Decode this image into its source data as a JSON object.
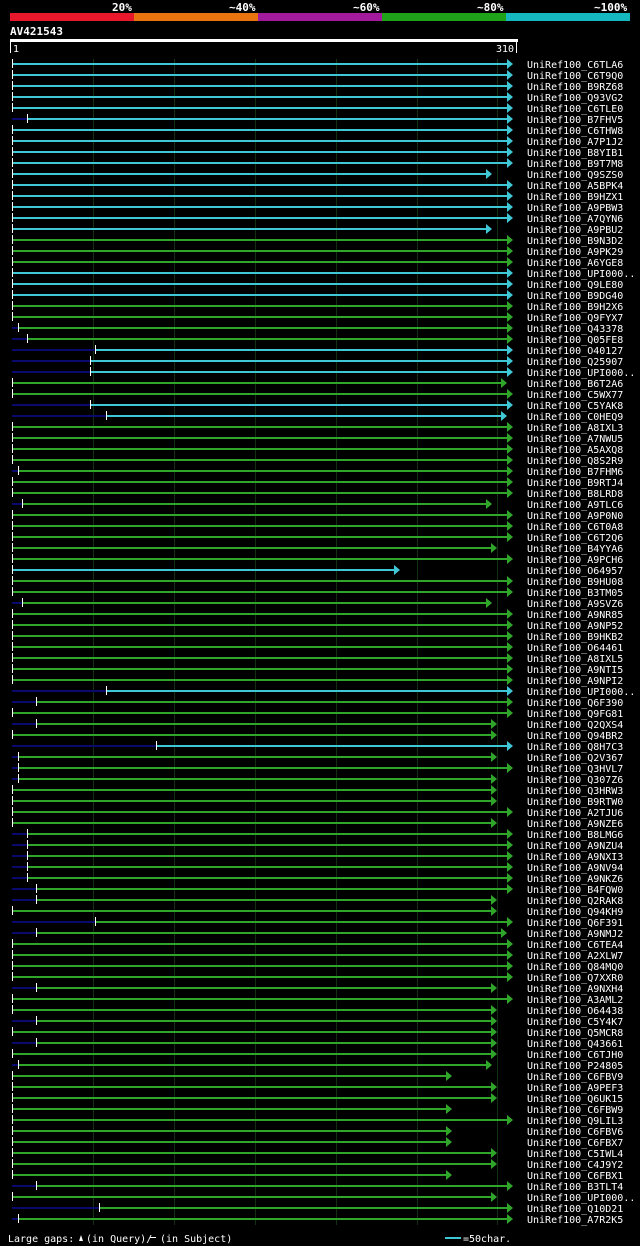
{
  "legend": {
    "percent_labels": [
      "20%",
      "~40%",
      "~60%",
      "~80%",
      "~100%"
    ],
    "colors": [
      "#e8172b",
      "#e8730f",
      "#a31a9c",
      "#1fa31b",
      "#16b8c0"
    ]
  },
  "query": {
    "name": "AV421543",
    "start_label": "1",
    "end_label": "310",
    "length": 310
  },
  "colors": {
    "cyan": "#3fc7d6",
    "green": "#2fa62a",
    "navy": "#0a0a6e",
    "grid": "#103010",
    "label": "#ffffff"
  },
  "hits": [
    {
      "name": "UniRef100_C6TLA6",
      "c": "cyan",
      "s": 1,
      "e": 310
    },
    {
      "name": "UniRef100_C6T9Q0",
      "c": "cyan",
      "s": 1,
      "e": 310
    },
    {
      "name": "UniRef100_B9RZ68",
      "c": "cyan",
      "s": 1,
      "e": 310
    },
    {
      "name": "UniRef100_Q93VG2",
      "c": "cyan",
      "s": 1,
      "e": 310
    },
    {
      "name": "UniRef100_C6TLE0",
      "c": "cyan",
      "s": 1,
      "e": 310
    },
    {
      "name": "UniRef100_B7FHV5",
      "c": "cyan",
      "s": 10,
      "e": 310
    },
    {
      "name": "UniRef100_C6THW8",
      "c": "cyan",
      "s": 1,
      "e": 310
    },
    {
      "name": "UniRef100_A7P1J2",
      "c": "cyan",
      "s": 1,
      "e": 310
    },
    {
      "name": "UniRef100_B8YIB1",
      "c": "cyan",
      "s": 1,
      "e": 310
    },
    {
      "name": "UniRef100_B9T7M8",
      "c": "cyan",
      "s": 1,
      "e": 310
    },
    {
      "name": "UniRef100_Q9SZS0",
      "c": "cyan",
      "s": 1,
      "e": 297
    },
    {
      "name": "UniRef100_A5BPK4",
      "c": "cyan",
      "s": 1,
      "e": 310
    },
    {
      "name": "UniRef100_B9HZX1",
      "c": "cyan",
      "s": 1,
      "e": 310
    },
    {
      "name": "UniRef100_A9PBW3",
      "c": "cyan",
      "s": 1,
      "e": 310
    },
    {
      "name": "UniRef100_A7QYN6",
      "c": "cyan",
      "s": 1,
      "e": 310
    },
    {
      "name": "UniRef100_A9PBU2",
      "c": "cyan",
      "s": 1,
      "e": 297
    },
    {
      "name": "UniRef100_B9N3D2",
      "c": "green",
      "s": 1,
      "e": 310
    },
    {
      "name": "UniRef100_A9PK29",
      "c": "green",
      "s": 1,
      "e": 310
    },
    {
      "name": "UniRef100_A6YGE8",
      "c": "green",
      "s": 1,
      "e": 310
    },
    {
      "name": "UniRef100_UPI000..",
      "c": "cyan",
      "s": 1,
      "e": 310
    },
    {
      "name": "UniRef100_Q9LE80",
      "c": "cyan",
      "s": 1,
      "e": 310
    },
    {
      "name": "UniRef100_B9DG40",
      "c": "cyan",
      "s": 1,
      "e": 310
    },
    {
      "name": "UniRef100_B9H2X6",
      "c": "green",
      "s": 1,
      "e": 310
    },
    {
      "name": "UniRef100_Q9FYX7",
      "c": "green",
      "s": 1,
      "e": 310
    },
    {
      "name": "UniRef100_Q43378",
      "c": "green",
      "s": 5,
      "e": 310
    },
    {
      "name": "UniRef100_Q05FE8",
      "c": "green",
      "s": 10,
      "e": 310
    },
    {
      "name": "UniRef100_O40127",
      "c": "cyan",
      "s": 52,
      "e": 310
    },
    {
      "name": "UniRef100_Q25907",
      "c": "cyan",
      "s": 49,
      "e": 310
    },
    {
      "name": "UniRef100_UPI000..",
      "c": "cyan",
      "s": 49,
      "e": 310
    },
    {
      "name": "UniRef100_B6T2A6",
      "c": "green",
      "s": 1,
      "e": 306
    },
    {
      "name": "UniRef100_C5WX77",
      "c": "green",
      "s": 1,
      "e": 310
    },
    {
      "name": "UniRef100_C5YAK8",
      "c": "cyan",
      "s": 49,
      "e": 310
    },
    {
      "name": "UniRef100_C0HEQ9",
      "c": "cyan",
      "s": 59,
      "e": 306
    },
    {
      "name": "UniRef100_A8IXL3",
      "c": "green",
      "s": 1,
      "e": 310
    },
    {
      "name": "UniRef100_A7NWU5",
      "c": "green",
      "s": 1,
      "e": 310
    },
    {
      "name": "UniRef100_A5AXQ8",
      "c": "green",
      "s": 1,
      "e": 310
    },
    {
      "name": "UniRef100_Q8S2R9",
      "c": "green",
      "s": 1,
      "e": 310
    },
    {
      "name": "UniRef100_B7FHM6",
      "c": "green",
      "s": 5,
      "e": 310
    },
    {
      "name": "UniRef100_B9RTJ4",
      "c": "green",
      "s": 1,
      "e": 310
    },
    {
      "name": "UniRef100_B8LRD8",
      "c": "green",
      "s": 1,
      "e": 310
    },
    {
      "name": "UniRef100_A9TLC6",
      "c": "green",
      "s": 7,
      "e": 297
    },
    {
      "name": "UniRef100_A9P0N0",
      "c": "green",
      "s": 1,
      "e": 310
    },
    {
      "name": "UniRef100_C6T0A8",
      "c": "green",
      "s": 1,
      "e": 310
    },
    {
      "name": "UniRef100_C6T2Q6",
      "c": "green",
      "s": 1,
      "e": 310
    },
    {
      "name": "UniRef100_B4YYA6",
      "c": "green",
      "s": 1,
      "e": 300
    },
    {
      "name": "UniRef100_A9PCH6",
      "c": "green",
      "s": 1,
      "e": 310
    },
    {
      "name": "UniRef100_O64957",
      "c": "cyan",
      "s": 1,
      "e": 240
    },
    {
      "name": "UniRef100_B9HU08",
      "c": "green",
      "s": 1,
      "e": 310
    },
    {
      "name": "UniRef100_B3TM05",
      "c": "green",
      "s": 1,
      "e": 310
    },
    {
      "name": "UniRef100_A9SVZ6",
      "c": "green",
      "s": 7,
      "e": 297
    },
    {
      "name": "UniRef100_A9NR85",
      "c": "green",
      "s": 1,
      "e": 310
    },
    {
      "name": "UniRef100_A9NP52",
      "c": "green",
      "s": 1,
      "e": 310
    },
    {
      "name": "UniRef100_B9HKB2",
      "c": "green",
      "s": 1,
      "e": 310
    },
    {
      "name": "UniRef100_O64461",
      "c": "green",
      "s": 1,
      "e": 310
    },
    {
      "name": "UniRef100_A8IXL5",
      "c": "green",
      "s": 1,
      "e": 310
    },
    {
      "name": "UniRef100_A9NTI5",
      "c": "green",
      "s": 1,
      "e": 310
    },
    {
      "name": "UniRef100_A9NPI2",
      "c": "green",
      "s": 1,
      "e": 310
    },
    {
      "name": "UniRef100_UPI000..",
      "c": "cyan",
      "s": 59,
      "e": 310
    },
    {
      "name": "UniRef100_Q6F390",
      "c": "green",
      "s": 16,
      "e": 310
    },
    {
      "name": "UniRef100_Q9FG81",
      "c": "green",
      "s": 1,
      "e": 310
    },
    {
      "name": "UniRef100_Q2QXS4",
      "c": "green",
      "s": 16,
      "e": 300
    },
    {
      "name": "UniRef100_Q94BR2",
      "c": "green",
      "s": 1,
      "e": 300
    },
    {
      "name": "UniRef100_Q8H7C3",
      "c": "cyan",
      "s": 90,
      "e": 310
    },
    {
      "name": "UniRef100_Q2V367",
      "c": "green",
      "s": 5,
      "e": 300
    },
    {
      "name": "UniRef100_Q3HVL7",
      "c": "green",
      "s": 5,
      "e": 310
    },
    {
      "name": "UniRef100_Q307Z6",
      "c": "green",
      "s": 5,
      "e": 300
    },
    {
      "name": "UniRef100_Q3HRW3",
      "c": "green",
      "s": 1,
      "e": 300
    },
    {
      "name": "UniRef100_B9RTW0",
      "c": "green",
      "s": 1,
      "e": 300
    },
    {
      "name": "UniRef100_A2TJU6",
      "c": "green",
      "s": 1,
      "e": 310
    },
    {
      "name": "UniRef100_A9NZE6",
      "c": "green",
      "s": 1,
      "e": 300
    },
    {
      "name": "UniRef100_B8LMG6",
      "c": "green",
      "s": 10,
      "e": 310
    },
    {
      "name": "UniRef100_A9NZU4",
      "c": "green",
      "s": 10,
      "e": 310
    },
    {
      "name": "UniRef100_A9NXI3",
      "c": "green",
      "s": 10,
      "e": 310
    },
    {
      "name": "UniRef100_A9NV94",
      "c": "green",
      "s": 10,
      "e": 310
    },
    {
      "name": "UniRef100_A9NKZ6",
      "c": "green",
      "s": 10,
      "e": 310
    },
    {
      "name": "UniRef100_B4FQW0",
      "c": "green",
      "s": 16,
      "e": 310
    },
    {
      "name": "UniRef100_Q2RAK8",
      "c": "green",
      "s": 16,
      "e": 300
    },
    {
      "name": "UniRef100_Q94KH9",
      "c": "green",
      "s": 1,
      "e": 300
    },
    {
      "name": "UniRef100_Q6F391",
      "c": "green",
      "s": 52,
      "e": 310
    },
    {
      "name": "UniRef100_A9NMJ2",
      "c": "green",
      "s": 16,
      "e": 306
    },
    {
      "name": "UniRef100_C6TEA4",
      "c": "green",
      "s": 1,
      "e": 310
    },
    {
      "name": "UniRef100_A2XLW7",
      "c": "green",
      "s": 1,
      "e": 310
    },
    {
      "name": "UniRef100_Q84MQ0",
      "c": "green",
      "s": 1,
      "e": 310
    },
    {
      "name": "UniRef100_Q7XXR0",
      "c": "green",
      "s": 1,
      "e": 310
    },
    {
      "name": "UniRef100_A9NXH4",
      "c": "green",
      "s": 16,
      "e": 300
    },
    {
      "name": "UniRef100_A3AML2",
      "c": "green",
      "s": 1,
      "e": 310
    },
    {
      "name": "UniRef100_O64438",
      "c": "green",
      "s": 1,
      "e": 300
    },
    {
      "name": "UniRef100_C5Y4K7",
      "c": "green",
      "s": 16,
      "e": 300
    },
    {
      "name": "UniRef100_Q5MCR8",
      "c": "green",
      "s": 1,
      "e": 300
    },
    {
      "name": "UniRef100_Q43661",
      "c": "green",
      "s": 16,
      "e": 300
    },
    {
      "name": "UniRef100_C6TJH0",
      "c": "green",
      "s": 1,
      "e": 300
    },
    {
      "name": "UniRef100_P24805",
      "c": "green",
      "s": 5,
      "e": 297
    },
    {
      "name": "UniRef100_C6FBV9",
      "c": "green",
      "s": 1,
      "e": 272
    },
    {
      "name": "UniRef100_A9PEF3",
      "c": "green",
      "s": 1,
      "e": 300
    },
    {
      "name": "UniRef100_Q6UK15",
      "c": "green",
      "s": 1,
      "e": 300
    },
    {
      "name": "UniRef100_C6FBW9",
      "c": "green",
      "s": 1,
      "e": 272
    },
    {
      "name": "UniRef100_Q9LIL3",
      "c": "green",
      "s": 1,
      "e": 310
    },
    {
      "name": "UniRef100_C6FBV6",
      "c": "green",
      "s": 1,
      "e": 272
    },
    {
      "name": "UniRef100_C6FBX7",
      "c": "green",
      "s": 1,
      "e": 272
    },
    {
      "name": "UniRef100_C5IWL4",
      "c": "green",
      "s": 1,
      "e": 300
    },
    {
      "name": "UniRef100_C4J9Y2",
      "c": "green",
      "s": 1,
      "e": 300
    },
    {
      "name": "UniRef100_C6FBX1",
      "c": "green",
      "s": 1,
      "e": 272
    },
    {
      "name": "UniRef100_B3TLT4",
      "c": "green",
      "s": 16,
      "e": 310
    },
    {
      "name": "UniRef100_UPI000..",
      "c": "green",
      "s": 1,
      "e": 300
    },
    {
      "name": "UniRef100_Q10D21",
      "c": "green",
      "s": 55,
      "e": 310
    },
    {
      "name": "UniRef100_A7R2K5",
      "c": "green",
      "s": 5,
      "e": 310
    }
  ],
  "footer": {
    "gaps_label": "Large gaps:",
    "query_gap_text": "(in Query)/",
    "subject_gap_text": "(in Subject)",
    "scale_text": "=50char."
  }
}
